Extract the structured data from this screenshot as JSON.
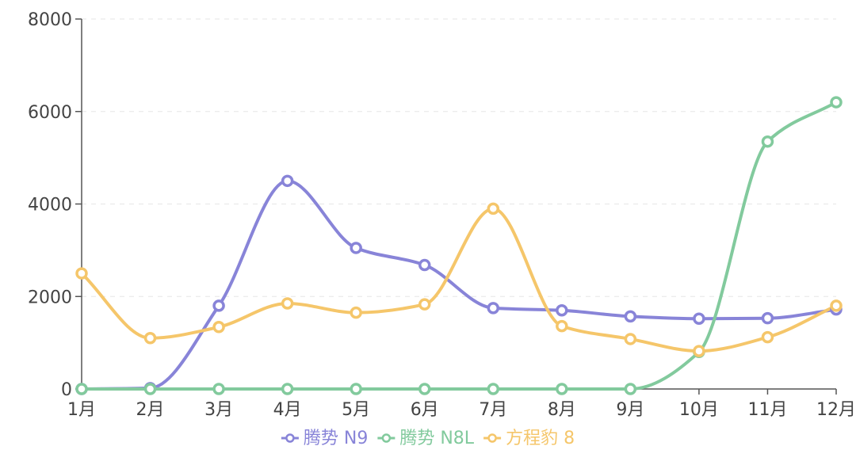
{
  "chart_data": {
    "type": "line",
    "smooth": true,
    "categories": [
      "1月",
      "2月",
      "3月",
      "4月",
      "5月",
      "6月",
      "7月",
      "8月",
      "9月",
      "10月",
      "11月",
      "12月"
    ],
    "ylim": [
      0,
      8000
    ],
    "yticks": [
      "0",
      "2000",
      "4000",
      "6000",
      "8000"
    ],
    "grid": true,
    "legend_position": "bottom-center",
    "series": [
      {
        "name": "腾势 N9",
        "color": "#8884d8",
        "values": [
          0,
          20,
          1800,
          4500,
          3050,
          2680,
          1750,
          1700,
          1570,
          1520,
          1530,
          1720
        ]
      },
      {
        "name": "腾势 N8L",
        "color": "#82ca9d",
        "values": [
          0,
          0,
          0,
          0,
          0,
          0,
          0,
          0,
          0,
          800,
          5350,
          6200
        ]
      },
      {
        "name": "方程豹 8",
        "color": "#f5c66a",
        "values": [
          2500,
          1100,
          1340,
          1850,
          1650,
          1830,
          3900,
          1360,
          1080,
          820,
          1120,
          1800
        ]
      }
    ]
  }
}
